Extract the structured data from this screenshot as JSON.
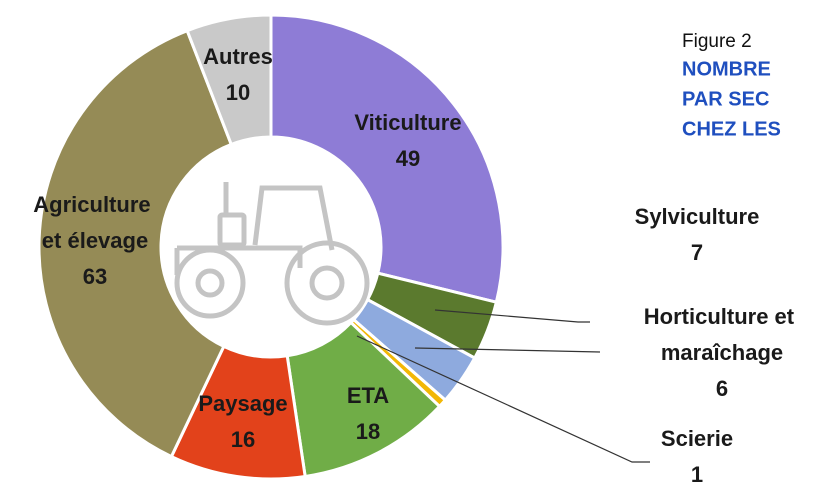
{
  "chart_data": {
    "type": "donut",
    "figure_label": "Figure 2",
    "title_lines": [
      "NOMBRE",
      "PAR SEC",
      "CHEZ LES"
    ],
    "categories": [
      "Viticulture",
      "Sylviculture",
      "Horticulture et maraîchage",
      "Scierie",
      "ETA",
      "Paysage",
      "Agriculture et élevage",
      "Autres"
    ],
    "values": [
      49,
      7,
      6,
      1,
      18,
      16,
      63,
      10
    ],
    "colors": [
      "#8e7cd6",
      "#5b7a2e",
      "#8eaade",
      "#f2b705",
      "#70ad47",
      "#e2421b",
      "#958b56",
      "#c9c9c9"
    ]
  }
}
